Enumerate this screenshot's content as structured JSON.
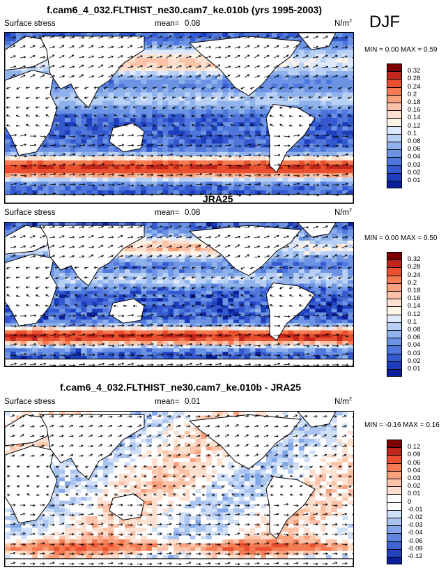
{
  "season": "DJF",
  "panels": [
    {
      "title": "f.cam6_4_032.FLTHIST_ne30.cam7_ke.010b (yrs 1995-2003)",
      "variable": "Surface stress",
      "mean_label": "mean=",
      "mean_value": "0.08",
      "units_base": "N/m",
      "units_exp": "2",
      "minmax": "MIN =  0.00 MAX =  0.59",
      "colorbar_labels": [
        "0.32",
        "0.28",
        "0.24",
        "0.2",
        "0.18",
        "0.16",
        "0.14",
        "0.12",
        "0.1",
        "0.08",
        "0.06",
        "0.04",
        "0.03",
        "0.02",
        "0.01"
      ],
      "colorbar_colors": [
        "#7b0000",
        "#c1261c",
        "#e8502f",
        "#f47a52",
        "#f9a07c",
        "#fcc3a8",
        "#fde0cf",
        "#fff4e8",
        "#dfe9fb",
        "#b8d0f5",
        "#8fb2ec",
        "#6c93e4",
        "#4f77dc",
        "#3559cf",
        "#1d3fbd",
        "#0a1f9a"
      ],
      "chart_data": {
        "type": "heatmap",
        "field": "surface wind stress magnitude with vector arrows",
        "stats": {
          "mean": 0.08,
          "min": 0.0,
          "max": 0.59
        },
        "contour_levels": [
          0.01,
          0.02,
          0.03,
          0.04,
          0.06,
          0.08,
          0.1,
          0.12,
          0.14,
          0.16,
          0.18,
          0.2,
          0.24,
          0.28,
          0.32
        ]
      }
    },
    {
      "title": "JRA25",
      "variable": "Surface stress",
      "mean_label": "mean=",
      "mean_value": "0.08",
      "units_base": "N/m",
      "units_exp": "2",
      "minmax": "MIN =  0.00 MAX =  0.50",
      "colorbar_labels": [
        "0.32",
        "0.28",
        "0.24",
        "0.2",
        "0.18",
        "0.16",
        "0.14",
        "0.12",
        "0.1",
        "0.08",
        "0.06",
        "0.04",
        "0.03",
        "0.02",
        "0.01"
      ],
      "colorbar_colors": [
        "#7b0000",
        "#c1261c",
        "#e8502f",
        "#f47a52",
        "#f9a07c",
        "#fcc3a8",
        "#fde0cf",
        "#fff4e8",
        "#dfe9fb",
        "#b8d0f5",
        "#8fb2ec",
        "#6c93e4",
        "#4f77dc",
        "#3559cf",
        "#1d3fbd",
        "#0a1f9a"
      ],
      "chart_data": {
        "type": "heatmap",
        "field": "surface wind stress magnitude with vector arrows",
        "stats": {
          "mean": 0.08,
          "min": 0.0,
          "max": 0.5
        },
        "contour_levels": [
          0.01,
          0.02,
          0.03,
          0.04,
          0.06,
          0.08,
          0.1,
          0.12,
          0.14,
          0.16,
          0.18,
          0.2,
          0.24,
          0.28,
          0.32
        ]
      }
    },
    {
      "title": "f.cam6_4_032.FLTHIST_ne30.cam7_ke.010b - JRA25",
      "variable": "Surface stress",
      "mean_label": "mean=",
      "mean_value": "0.01",
      "units_base": "N/m",
      "units_exp": "2",
      "minmax": "MIN = -0.16 MAX =  0.16",
      "colorbar_labels": [
        "0.12",
        "0.09",
        "0.06",
        "0.04",
        "0.03",
        "0.02",
        "0.01",
        "0",
        "-0.01",
        "-0.02",
        "-0.03",
        "-0.04",
        "-0.06",
        "-0.09",
        "-0.12"
      ],
      "colorbar_colors": [
        "#7b0000",
        "#c1261c",
        "#e8502f",
        "#f47a52",
        "#f9a07c",
        "#fcc3a8",
        "#fde0cf",
        "#ffffff",
        "#ffffff",
        "#cfdff8",
        "#a9c4f1",
        "#83a6e9",
        "#5f85df",
        "#3f63d3",
        "#2343bf",
        "#0a1f9a"
      ],
      "chart_data": {
        "type": "heatmap",
        "field": "surface wind stress difference (model - JRA25) with vector arrows",
        "stats": {
          "mean": 0.01,
          "min": -0.16,
          "max": 0.16
        },
        "contour_levels": [
          -0.12,
          -0.09,
          -0.06,
          -0.04,
          -0.03,
          -0.02,
          -0.01,
          0,
          0.01,
          0.02,
          0.03,
          0.04,
          0.06,
          0.09,
          0.12
        ]
      }
    }
  ]
}
